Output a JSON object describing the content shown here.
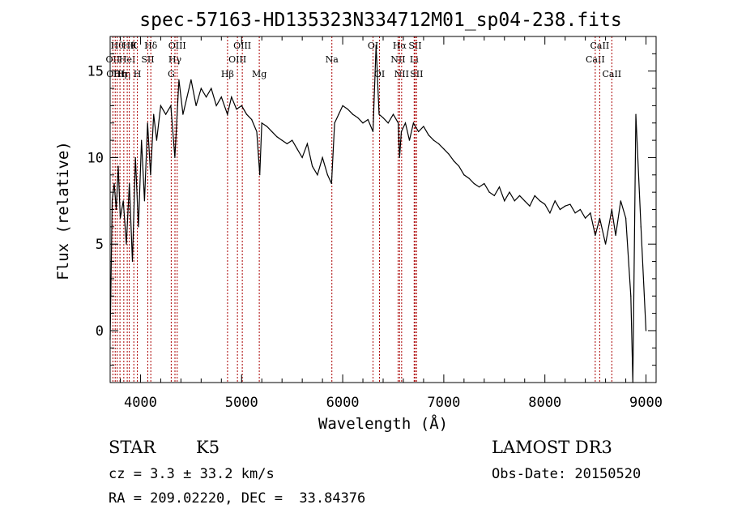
{
  "chart_data": {
    "type": "line",
    "title": "spec-57163-HD135323N334712M01_sp04-238.fits",
    "xlabel": "Wavelength (Å)",
    "ylabel": "Flux (relative)",
    "xlim": [
      3700,
      9100
    ],
    "ylim": [
      -3,
      17
    ],
    "xticks": [
      4000,
      5000,
      6000,
      7000,
      8000,
      9000
    ],
    "xtick_labels": [
      "4000",
      "5000",
      "6000",
      "7000",
      "8000",
      "9000"
    ],
    "yticks": [
      0,
      5,
      10,
      15
    ],
    "ytick_labels": [
      "0",
      "5",
      "10",
      "15"
    ],
    "line_color": "#000000",
    "marker_color": "#aa0000",
    "series": [
      {
        "name": "spectrum",
        "x": [
          3700,
          3720,
          3740,
          3760,
          3780,
          3800,
          3830,
          3860,
          3890,
          3920,
          3950,
          3980,
          4010,
          4040,
          4070,
          4100,
          4130,
          4160,
          4200,
          4250,
          4300,
          4340,
          4380,
          4420,
          4460,
          4500,
          4550,
          4600,
          4650,
          4700,
          4750,
          4800,
          4860,
          4900,
          4950,
          5000,
          5050,
          5100,
          5150,
          5180,
          5200,
          5250,
          5300,
          5350,
          5400,
          5450,
          5500,
          5550,
          5600,
          5650,
          5700,
          5750,
          5800,
          5850,
          5890,
          5920,
          5960,
          6000,
          6050,
          6100,
          6150,
          6200,
          6250,
          6300,
          6330,
          6360,
          6400,
          6450,
          6500,
          6550,
          6563,
          6580,
          6620,
          6660,
          6700,
          6750,
          6800,
          6850,
          6900,
          6950,
          7000,
          7050,
          7100,
          7150,
          7200,
          7250,
          7300,
          7350,
          7400,
          7450,
          7500,
          7550,
          7600,
          7650,
          7700,
          7750,
          7800,
          7850,
          7900,
          7950,
          8000,
          8050,
          8100,
          8150,
          8200,
          8250,
          8300,
          8350,
          8400,
          8450,
          8498,
          8542,
          8600,
          8662,
          8700,
          8750,
          8800,
          8850,
          8870,
          8900,
          8950,
          9000
        ],
        "y": [
          -0.5,
          7.5,
          8.5,
          7,
          9.5,
          6.5,
          7.5,
          5,
          8.5,
          4,
          10,
          6,
          11,
          7.5,
          12,
          9,
          12.5,
          11,
          13,
          12.5,
          13,
          10,
          14.5,
          12.5,
          13.5,
          14.5,
          13,
          14,
          13.5,
          14,
          13,
          13.5,
          12.5,
          13.5,
          12.8,
          13,
          12.5,
          12.2,
          11.5,
          9,
          12,
          11.8,
          11.5,
          11.2,
          11,
          10.8,
          11,
          10.5,
          10,
          10.8,
          9.5,
          9,
          10,
          9,
          8.5,
          12,
          12.5,
          13,
          12.8,
          12.5,
          12.3,
          12,
          12.2,
          11.5,
          16.5,
          12.5,
          12.3,
          12,
          12.5,
          12,
          10,
          11.5,
          12,
          11,
          12,
          11.5,
          11.8,
          11.3,
          11,
          10.8,
          10.5,
          10.2,
          9.8,
          9.5,
          9,
          8.8,
          8.5,
          8.3,
          8.5,
          8,
          7.8,
          8.3,
          7.5,
          8,
          7.5,
          7.8,
          7.5,
          7.2,
          7.8,
          7.5,
          7.3,
          6.8,
          7.5,
          7,
          7.2,
          7.3,
          6.8,
          7,
          6.5,
          6.8,
          5.5,
          6.5,
          5,
          7,
          5.5,
          7.5,
          6.5,
          2,
          -3,
          12.5,
          6,
          0
        ]
      }
    ],
    "line_markers": [
      {
        "wavelength": 3727,
        "label": "OII",
        "row": 1
      },
      {
        "wavelength": 3750,
        "label": "OIII",
        "row": 2
      },
      {
        "wavelength": 3770,
        "label": "Hθ",
        "row": 0
      },
      {
        "wavelength": 3797,
        "label": "Hη",
        "row": 2
      },
      {
        "wavelength": 3835,
        "label": "Hη",
        "row": 2
      },
      {
        "wavelength": 3869,
        "label": "HeI",
        "row": 1
      },
      {
        "wavelength": 3889,
        "label": "Hθ",
        "row": 0
      },
      {
        "wavelength": 3934,
        "label": "K",
        "row": 0
      },
      {
        "wavelength": 3969,
        "label": "H",
        "row": 2
      },
      {
        "wavelength": 4072,
        "label": "SII",
        "row": 1
      },
      {
        "wavelength": 4102,
        "label": "Hδ",
        "row": 0
      },
      {
        "wavelength": 4304,
        "label": "G",
        "row": 2
      },
      {
        "wavelength": 4341,
        "label": "Hγ",
        "row": 1
      },
      {
        "wavelength": 4363,
        "label": "OIII",
        "row": 0
      },
      {
        "wavelength": 4861,
        "label": "Hβ",
        "row": 2
      },
      {
        "wavelength": 4959,
        "label": "OIII",
        "row": 1
      },
      {
        "wavelength": 5007,
        "label": "OIII",
        "row": 0
      },
      {
        "wavelength": 5175,
        "label": "Mg",
        "row": 2
      },
      {
        "wavelength": 5893,
        "label": "Na",
        "row": 1
      },
      {
        "wavelength": 6300,
        "label": "OI",
        "row": 0
      },
      {
        "wavelength": 6364,
        "label": "OI",
        "row": 2
      },
      {
        "wavelength": 6548,
        "label": "NII",
        "row": 1
      },
      {
        "wavelength": 6563,
        "label": "Hα",
        "row": 0
      },
      {
        "wavelength": 6583,
        "label": "NII",
        "row": 2
      },
      {
        "wavelength": 6707,
        "label": "Li",
        "row": 1
      },
      {
        "wavelength": 6716,
        "label": "SII",
        "row": 0
      },
      {
        "wavelength": 6731,
        "label": "SII",
        "row": 2
      },
      {
        "wavelength": 8498,
        "label": "CaII",
        "row": 1
      },
      {
        "wavelength": 8542,
        "label": "CaII",
        "row": 0
      },
      {
        "wavelength": 8662,
        "label": "CaII",
        "row": 2
      }
    ]
  },
  "info": {
    "object_class": "STAR",
    "subclass": "K5",
    "survey": "LAMOST DR3",
    "redshift": "cz = 3.3 ± 33.2 km/s",
    "obs_date": "Obs-Date: 20150520",
    "coords": "RA = 209.02220, DEC =  33.84376"
  }
}
